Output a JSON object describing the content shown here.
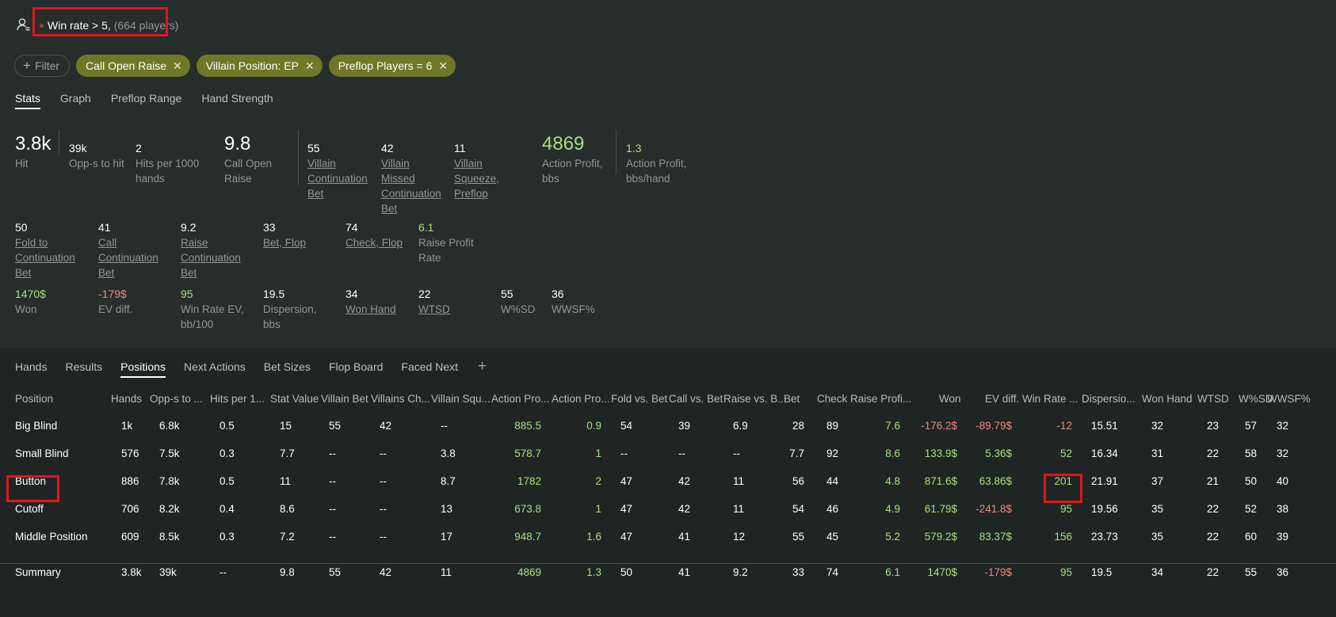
{
  "header": {
    "title": "Win rate > 5",
    "sep": ",",
    "players": "(664 players)"
  },
  "filters": {
    "add_label": "Filter",
    "chips": [
      "Call Open Raise",
      "Villain Position: EP",
      "Preflop Players = 6"
    ]
  },
  "top_tabs": [
    "Stats",
    "Graph",
    "Preflop Range",
    "Hand Strength"
  ],
  "stats_row1": [
    {
      "value": "3.8k",
      "label": "Hit"
    },
    {
      "value": "39k",
      "label": "Opp-s to hit"
    },
    {
      "value": "2",
      "label": "Hits per 1000 hands"
    },
    {
      "value": "9.8",
      "label": "Call Open Raise"
    },
    {
      "value": "55",
      "label": "Villain Continuation Bet"
    },
    {
      "value": "42",
      "label": "Villain Missed Continuation Bet"
    },
    {
      "value": "11",
      "label": "Villain Squeeze, Preflop"
    },
    {
      "value": "4869",
      "label": "Action Profit, bbs"
    },
    {
      "value": "1.3",
      "label": "Action Profit, bbs/hand"
    }
  ],
  "stats_row2": [
    {
      "value": "50",
      "label": "Fold to Continuation Bet"
    },
    {
      "value": "41",
      "label": "Call Continuation Bet"
    },
    {
      "value": "9.2",
      "label": "Raise Continuation Bet"
    },
    {
      "value": "33",
      "label": "Bet, Flop"
    },
    {
      "value": "74",
      "label": "Check, Flop"
    },
    {
      "value": "6.1",
      "label": "Raise Profit Rate"
    }
  ],
  "stats_row3": [
    {
      "value": "1470$",
      "label": "Won"
    },
    {
      "value": "-179$",
      "label": "EV diff."
    },
    {
      "value": "95",
      "label": "Win Rate EV, bb/100"
    },
    {
      "value": "19.5",
      "label": "Dispersion, bbs"
    },
    {
      "value": "34",
      "label": "Won Hand"
    },
    {
      "value": "22",
      "label": "WTSD"
    },
    {
      "value": "55",
      "label": "W%SD"
    },
    {
      "value": "36",
      "label": "WWSF%"
    }
  ],
  "bottom_tabs": [
    "Hands",
    "Results",
    "Positions",
    "Next Actions",
    "Bet Sizes",
    "Flop Board",
    "Faced Next"
  ],
  "table": {
    "columns": [
      "Position",
      "Hands",
      "Opp-s to ...",
      "Hits per 1...",
      "Stat Value",
      "Villain Bet",
      "Villains Ch...",
      "Villain Squ...",
      "Action Pro...",
      "Action Pro...",
      "Fold vs. Bet",
      "Call vs. Bet",
      "Raise vs. B...",
      "Bet",
      "Check",
      "Raise Profi...",
      "Won",
      "EV diff.",
      "Win Rate ...",
      "Dispersio...",
      "Won Hand",
      "WTSD",
      "W%SD",
      "WWSF%"
    ],
    "rows": [
      [
        "Big Blind",
        "1k",
        "6.8k",
        "0.5",
        "15",
        "55",
        "42",
        "--",
        "885.5",
        "0.9",
        "54",
        "39",
        "6.9",
        "28",
        "89",
        "7.6",
        "-176.2$",
        "-89.79$",
        "-12",
        "15.51",
        "32",
        "23",
        "57",
        "32"
      ],
      [
        "Small Blind",
        "576",
        "7.5k",
        "0.3",
        "7.7",
        "--",
        "--",
        "3.8",
        "578.7",
        "1",
        "--",
        "--",
        "--",
        "7.7",
        "92",
        "8.6",
        "133.9$",
        "5.36$",
        "52",
        "16.34",
        "31",
        "22",
        "58",
        "32"
      ],
      [
        "Button",
        "886",
        "7.8k",
        "0.5",
        "11",
        "--",
        "--",
        "8.7",
        "1782",
        "2",
        "47",
        "42",
        "11",
        "56",
        "44",
        "4.8",
        "871.6$",
        "63.86$",
        "201",
        "21.91",
        "37",
        "21",
        "50",
        "40"
      ],
      [
        "Cutoff",
        "706",
        "8.2k",
        "0.4",
        "8.6",
        "--",
        "--",
        "13",
        "673.8",
        "1",
        "47",
        "42",
        "11",
        "54",
        "46",
        "4.9",
        "61.79$",
        "-241.8$",
        "95",
        "19.56",
        "35",
        "22",
        "52",
        "38"
      ],
      [
        "Middle Position",
        "609",
        "8.5k",
        "0.3",
        "7.2",
        "--",
        "--",
        "17",
        "948.7",
        "1.6",
        "47",
        "41",
        "12",
        "55",
        "45",
        "5.2",
        "579.2$",
        "83.37$",
        "156",
        "23.73",
        "35",
        "22",
        "60",
        "39"
      ]
    ],
    "summary": [
      "Summary",
      "3.8k",
      "39k",
      "--",
      "9.8",
      "55",
      "42",
      "11",
      "4869",
      "1.3",
      "50",
      "41",
      "9.2",
      "33",
      "74",
      "6.1",
      "1470$",
      "-179$",
      "95",
      "19.5",
      "34",
      "22",
      "55",
      "36"
    ]
  },
  "colors": {
    "positive": "#a8e07a",
    "negative": "#f08a7a",
    "chip": "#707726",
    "highlight": "#e0161c"
  }
}
